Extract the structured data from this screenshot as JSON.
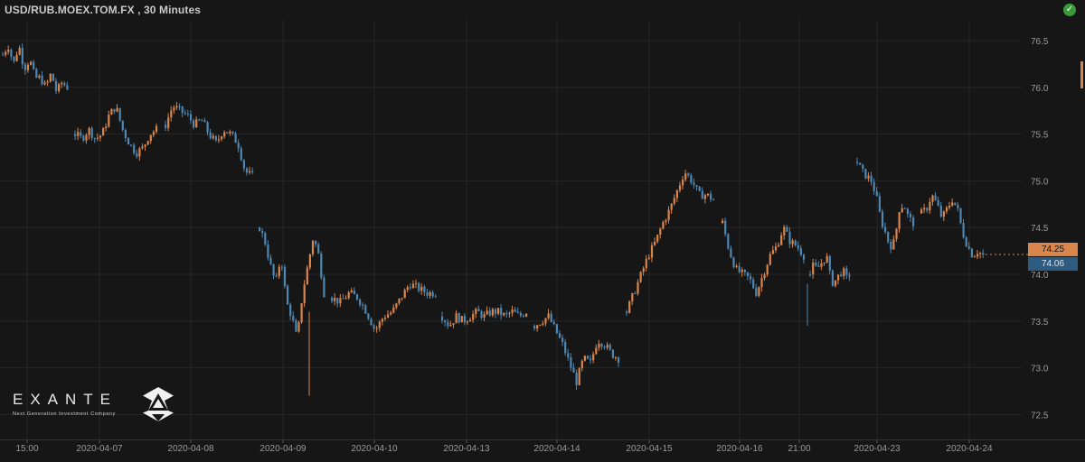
{
  "header": {
    "title": "USD/RUB.MOEX.TOM.FX , 30 Minutes",
    "status_icon": "check-circle-icon",
    "status_color": "#3a9a3a"
  },
  "logo": {
    "word": "EXANTE",
    "tagline": "Next Generation Investment Company",
    "icon": "exante-hexagon-logo-icon"
  },
  "colors": {
    "background": "#161616",
    "up": "#d9864c",
    "down": "#4d87b2",
    "grid": "#262626",
    "text": "#9a9a9a"
  },
  "price_tags": {
    "upper": "74.25",
    "lower": "74.06"
  },
  "chart_data": {
    "type": "candlestick",
    "interval": "30 Minutes",
    "symbol": "USD/RUB.MOEX.TOM.FX",
    "ylim": [
      72.2,
      76.8
    ],
    "y_ticks": [
      "76.5",
      "76.0",
      "75.5",
      "75.0",
      "74.5",
      "74.0",
      "73.5",
      "73.0",
      "72.5"
    ],
    "x_labels": [
      "15:00",
      "2020-04-07",
      "2020-04-08",
      "2020-04-09",
      "2020-04-10",
      "2020-04-13",
      "2020-04-14",
      "2020-04-15",
      "2020-04-16",
      "21:00",
      "2020-04-23",
      "2020-04-24"
    ],
    "grid": true,
    "waypoints": [
      [
        76.35,
        76.45,
        76.25,
        76.45,
        76.2,
        76.3,
        76.1,
        76.1,
        76.0,
        76.15,
        75.95,
        76.05,
        76.0
      ],
      [
        75.5,
        75.45,
        75.55,
        75.45,
        75.5,
        75.7,
        75.8,
        75.55,
        75.4,
        75.3,
        75.35,
        75.5,
        75.55
      ],
      [
        75.6,
        75.8,
        75.75,
        75.7,
        75.6,
        75.65,
        75.5,
        75.4,
        75.55,
        75.5,
        75.4,
        75.1,
        75.05
      ],
      [
        74.5,
        74.35,
        74.1,
        73.9,
        74.2,
        73.7,
        73.55,
        73.3,
        73.8,
        74.1,
        74.4,
        74.2,
        73.8
      ],
      [
        73.75,
        73.7,
        73.8,
        73.75,
        73.6,
        73.4,
        73.55,
        73.6,
        73.75,
        73.9,
        73.85,
        73.8,
        73.8
      ],
      [
        73.55,
        73.45,
        73.55,
        73.5,
        73.55,
        73.6,
        73.55,
        73.6,
        73.6,
        73.55,
        73.6,
        73.55,
        73.6
      ],
      [
        73.45,
        73.5,
        73.55,
        73.4,
        73.25,
        73.05,
        72.85,
        73.1,
        73.05,
        73.3,
        73.25,
        73.15,
        73.1
      ],
      [
        73.6,
        73.8,
        74.0,
        74.2,
        74.35,
        74.55,
        74.7,
        74.9,
        75.1,
        75.0,
        74.85,
        74.85,
        74.8
      ],
      [
        74.55,
        74.25,
        74.05,
        74.0,
        73.95,
        73.8,
        74.0,
        74.2,
        74.3,
        74.5,
        74.35,
        74.3,
        74.2
      ],
      [
        74.0,
        74.1,
        74.05,
        74.1,
        74.15,
        74.2,
        74.0,
        73.9,
        73.95,
        74.0,
        74.05,
        73.95,
        74.0
      ],
      [
        75.2,
        75.1,
        75.05,
        75.0,
        74.85,
        74.6,
        74.45,
        74.3,
        74.35,
        74.7,
        74.75,
        74.6,
        74.55
      ],
      [
        74.65,
        74.7,
        74.85,
        74.75,
        74.6,
        74.7,
        74.8,
        74.7,
        74.45,
        74.3,
        74.2,
        74.25,
        74.2
      ]
    ]
  }
}
